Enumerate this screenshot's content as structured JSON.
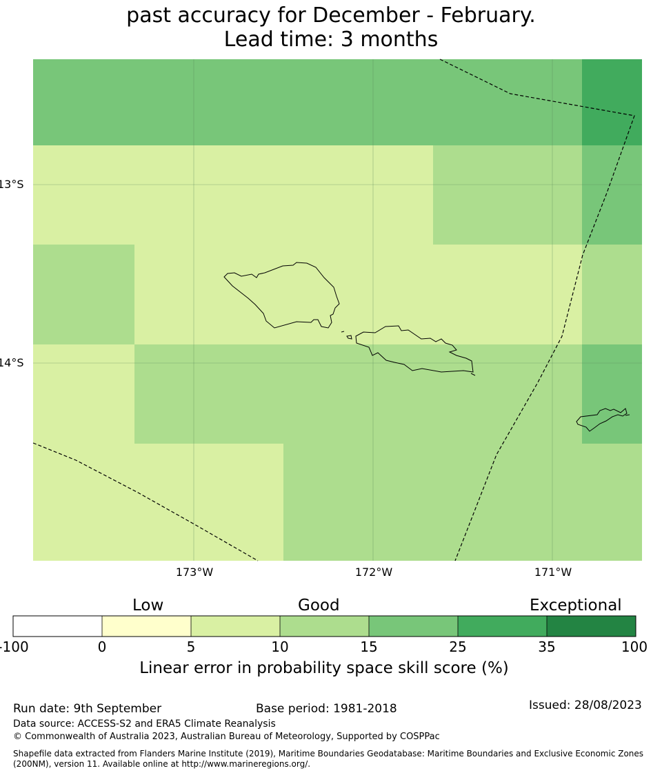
{
  "title": {
    "line1": "past accuracy for December - February.",
    "line2": "Lead time: 3 months"
  },
  "map": {
    "lat_labels": [
      "13°S",
      "14°S"
    ],
    "lon_labels": [
      "173°W",
      "172°W",
      "171°W"
    ],
    "skill_colors": {
      "neg100_0": "#ffffff",
      "0_5": "#ffffcc",
      "5_10": "#d9f0a3",
      "10_15": "#addd8e",
      "15_25": "#78c679",
      "25_35": "#41ab5d",
      "35_100": "#238443"
    },
    "grid_values": [
      [
        "15-25",
        "15-25",
        "15-25",
        "15-25",
        "15-25",
        "15-25",
        "25-35"
      ],
      [
        "5-10",
        "5-10",
        "5-10",
        "5-10",
        "10-15",
        "10-15",
        "15-25"
      ],
      [
        "10-15",
        "5-10",
        "5-10",
        "5-10",
        "5-10",
        "5-10",
        "10-15"
      ],
      [
        "5-10",
        "10-15",
        "10-15",
        "10-15",
        "10-15",
        "10-15",
        "15-25"
      ],
      [
        "5-10",
        "5-10",
        "5-10",
        "10-15",
        "10-15",
        "10-15",
        "10-15"
      ]
    ]
  },
  "colorbar": {
    "categories": [
      "Low",
      "Good",
      "Exceptional"
    ],
    "ticks": [
      "-100",
      "0",
      "5",
      "10",
      "15",
      "25",
      "35",
      "100"
    ],
    "colors": [
      "#ffffff",
      "#ffffcc",
      "#d9f0a3",
      "#addd8e",
      "#78c679",
      "#41ab5d",
      "#238443"
    ],
    "title": "Linear error in probability space skill score (%)"
  },
  "footer": {
    "run_date": "Run date: 9th September",
    "base_period": "Base period: 1981-2018",
    "issued": "Issued: 28/08/2023",
    "data_source": "Data source: ACCESS-S2 and ERA5 Climate Reanalysis",
    "copyright": "© Commonwealth of Australia 2023, Australian Bureau of Meteorology, Supported by COSPPac",
    "shapefile": "Shapefile data extracted from Flanders Marine Institute (2019), Maritime Boundaries Geodatabase: Maritime Boundaries and Exclusive Economic Zones (200NM), version 11. Available online at http://www.marineregions.org/."
  }
}
